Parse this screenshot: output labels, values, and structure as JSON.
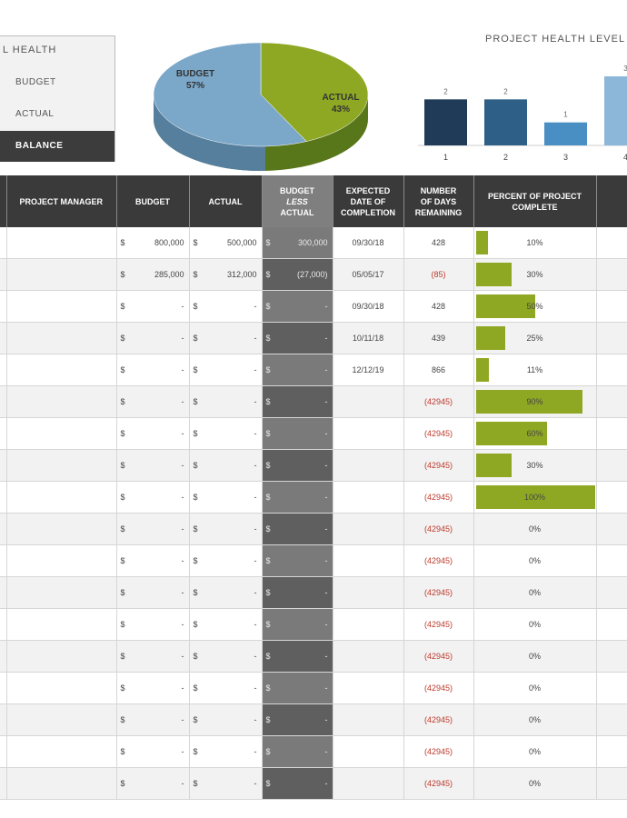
{
  "legend": {
    "title": "L HEALTH",
    "items": [
      {
        "label": "BUDGET",
        "color": "#7ba7c9"
      },
      {
        "label": "ACTUAL",
        "color": "#8fa823"
      },
      {
        "label": "BALANCE",
        "color": "#3c3c3c"
      }
    ]
  },
  "pie": {
    "budget_label": "BUDGET",
    "budget_pct": "57%",
    "actual_label": "ACTUAL",
    "actual_pct": "43%"
  },
  "bar_chart": {
    "title": "PROJECT HEALTH LEVEL CO"
  },
  "chart_data": [
    {
      "type": "pie",
      "categories": [
        "BUDGET",
        "ACTUAL"
      ],
      "values": [
        57,
        43
      ],
      "colors": [
        "#7ba7c9",
        "#8fa823"
      ]
    },
    {
      "type": "bar",
      "title": "PROJECT HEALTH LEVEL CO",
      "categories": [
        "1",
        "2",
        "3",
        "4"
      ],
      "values": [
        2,
        2,
        1,
        3
      ],
      "colors": [
        "#1f3b57",
        "#2e5f86",
        "#4a8fc4",
        "#8cb7d8"
      ],
      "ylim": [
        0,
        3
      ]
    }
  ],
  "table": {
    "headers": {
      "manager": "PROJECT MANAGER",
      "budget": "BUDGET",
      "actual": "ACTUAL",
      "bla_1": "BUDGET",
      "bla_2": "LESS",
      "bla_3": "ACTUAL",
      "exp_1": "EXPECTED",
      "exp_2": "DATE OF",
      "exp_3": "COMPLETION",
      "num_1": "NUMBER",
      "num_2": "OF DAYS",
      "num_3": "REMAINING",
      "pct_1": "PERCENT OF PROJECT",
      "pct_2": "COMPLETE"
    },
    "rows": [
      {
        "budget": "800,000",
        "actual": "500,000",
        "balance": "300,000",
        "date": "09/30/18",
        "days": "428",
        "pct": 10,
        "pct_label": "10%"
      },
      {
        "budget": "285,000",
        "actual": "312,000",
        "balance": "(27,000)",
        "date": "05/05/17",
        "days": "(85)",
        "pct": 30,
        "pct_label": "30%"
      },
      {
        "budget": "-",
        "actual": "-",
        "balance": "-",
        "date": "09/30/18",
        "days": "428",
        "pct": 50,
        "pct_label": "50%"
      },
      {
        "budget": "-",
        "actual": "-",
        "balance": "-",
        "date": "10/11/18",
        "days": "439",
        "pct": 25,
        "pct_label": "25%"
      },
      {
        "budget": "-",
        "actual": "-",
        "balance": "-",
        "date": "12/12/19",
        "days": "866",
        "pct": 11,
        "pct_label": "11%"
      },
      {
        "budget": "-",
        "actual": "-",
        "balance": "-",
        "date": "",
        "days": "(42945)",
        "pct": 90,
        "pct_label": "90%"
      },
      {
        "budget": "-",
        "actual": "-",
        "balance": "-",
        "date": "",
        "days": "(42945)",
        "pct": 60,
        "pct_label": "60%"
      },
      {
        "budget": "-",
        "actual": "-",
        "balance": "-",
        "date": "",
        "days": "(42945)",
        "pct": 30,
        "pct_label": "30%"
      },
      {
        "budget": "-",
        "actual": "-",
        "balance": "-",
        "date": "",
        "days": "(42945)",
        "pct": 100,
        "pct_label": "100%"
      },
      {
        "budget": "-",
        "actual": "-",
        "balance": "-",
        "date": "",
        "days": "(42945)",
        "pct": 0,
        "pct_label": "0%"
      },
      {
        "budget": "-",
        "actual": "-",
        "balance": "-",
        "date": "",
        "days": "(42945)",
        "pct": 0,
        "pct_label": "0%"
      },
      {
        "budget": "-",
        "actual": "-",
        "balance": "-",
        "date": "",
        "days": "(42945)",
        "pct": 0,
        "pct_label": "0%"
      },
      {
        "budget": "-",
        "actual": "-",
        "balance": "-",
        "date": "",
        "days": "(42945)",
        "pct": 0,
        "pct_label": "0%"
      },
      {
        "budget": "-",
        "actual": "-",
        "balance": "-",
        "date": "",
        "days": "(42945)",
        "pct": 0,
        "pct_label": "0%"
      },
      {
        "budget": "-",
        "actual": "-",
        "balance": "-",
        "date": "",
        "days": "(42945)",
        "pct": 0,
        "pct_label": "0%"
      },
      {
        "budget": "-",
        "actual": "-",
        "balance": "-",
        "date": "",
        "days": "(42945)",
        "pct": 0,
        "pct_label": "0%"
      },
      {
        "budget": "-",
        "actual": "-",
        "balance": "-",
        "date": "",
        "days": "(42945)",
        "pct": 0,
        "pct_label": "0%"
      },
      {
        "budget": "-",
        "actual": "-",
        "balance": "-",
        "date": "",
        "days": "(42945)",
        "pct": 0,
        "pct_label": "0%"
      }
    ],
    "currency": "$"
  }
}
